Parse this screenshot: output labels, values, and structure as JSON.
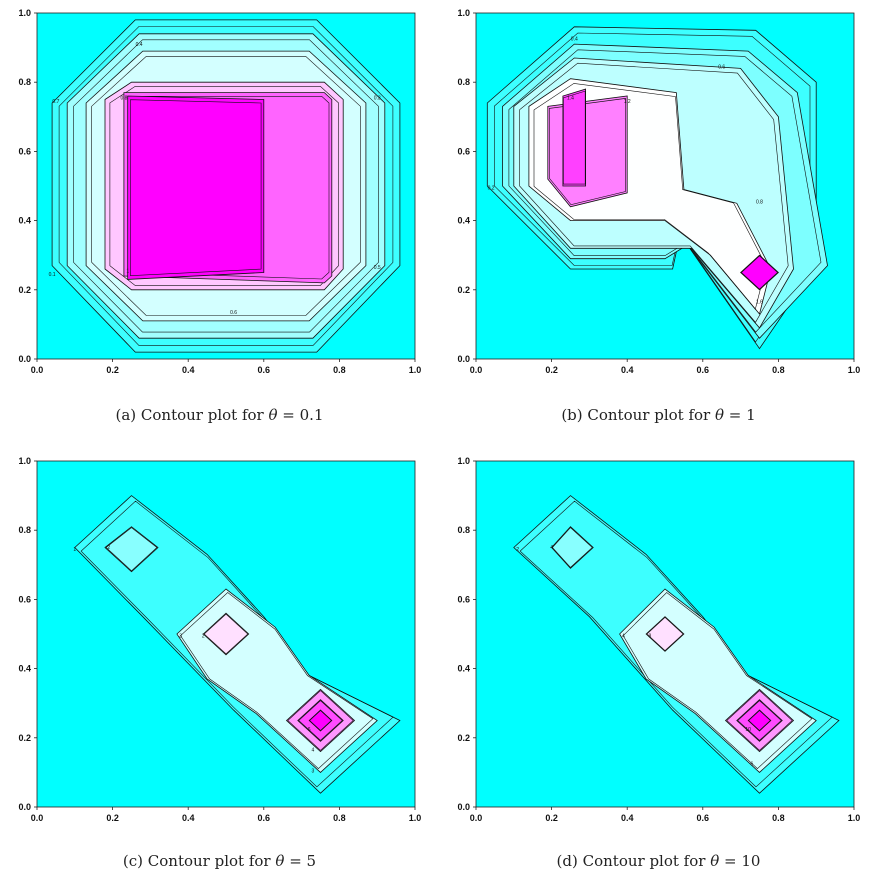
{
  "chart_data": [
    {
      "type": "contour",
      "panel": "a",
      "caption": "(a)  Contour plot for θ = 0.1",
      "caption_prefix": "(a)  Contour plot for ",
      "caption_symbol": "θ",
      "caption_value": "= 0.1",
      "xlim": [
        0,
        1
      ],
      "ylim": [
        0,
        1
      ],
      "x_ticks": [
        "0.0",
        "0.2",
        "0.4",
        "0.6",
        "0.8",
        "1.0"
      ],
      "y_ticks": [
        "0.0",
        "0.2",
        "0.4",
        "0.6",
        "0.8",
        "1.0"
      ],
      "background_color": "#00ffff",
      "peak_color": "#ff00ff",
      "contours": [
        {
          "level": 0.1,
          "label": "0.1",
          "outline": [
            [
              0.04,
              0.27
            ],
            [
              0.04,
              0.74
            ],
            [
              0.26,
              0.98
            ],
            [
              0.74,
              0.98
            ],
            [
              0.96,
              0.74
            ],
            [
              0.96,
              0.27
            ],
            [
              0.74,
              0.02
            ],
            [
              0.26,
              0.02
            ]
          ]
        },
        {
          "level": 0.3,
          "label": "0.3",
          "outline": [
            [
              0.08,
              0.27
            ],
            [
              0.08,
              0.74
            ],
            [
              0.27,
              0.94
            ],
            [
              0.73,
              0.94
            ],
            [
              0.92,
              0.74
            ],
            [
              0.92,
              0.27
            ],
            [
              0.73,
              0.06
            ],
            [
              0.27,
              0.06
            ]
          ]
        },
        {
          "level": 0.4,
          "label": "0.4",
          "outline": [
            [
              0.13,
              0.27
            ],
            [
              0.13,
              0.74
            ],
            [
              0.28,
              0.89
            ],
            [
              0.72,
              0.89
            ],
            [
              0.87,
              0.74
            ],
            [
              0.87,
              0.27
            ],
            [
              0.72,
              0.11
            ],
            [
              0.28,
              0.11
            ]
          ]
        },
        {
          "level": 0.6,
          "label": "0.6",
          "outline": [
            [
              0.18,
              0.26
            ],
            [
              0.18,
              0.75
            ],
            [
              0.25,
              0.8
            ],
            [
              0.76,
              0.8
            ],
            [
              0.81,
              0.75
            ],
            [
              0.81,
              0.26
            ],
            [
              0.76,
              0.2
            ],
            [
              0.25,
              0.2
            ]
          ]
        },
        {
          "level": 0.8,
          "label": "0.8",
          "outline": [
            [
              0.23,
              0.24
            ],
            [
              0.23,
              0.77
            ],
            [
              0.76,
              0.77
            ],
            [
              0.78,
              0.75
            ],
            [
              0.78,
              0.24
            ],
            [
              0.76,
              0.22
            ]
          ]
        },
        {
          "level": 1.0,
          "label": "1",
          "outline": [
            [
              0.24,
              0.23
            ],
            [
              0.24,
              0.76
            ],
            [
              0.6,
              0.75
            ],
            [
              0.6,
              0.25
            ]
          ]
        }
      ],
      "labels": [
        {
          "text": "0.4",
          "x": 0.27,
          "y": 0.905
        },
        {
          "text": "0.8",
          "x": 0.23,
          "y": 0.75
        },
        {
          "text": "0.7",
          "x": 0.05,
          "y": 0.74
        },
        {
          "text": "0.3",
          "x": 0.9,
          "y": 0.75
        },
        {
          "text": "0.5",
          "x": 0.9,
          "y": 0.26
        },
        {
          "text": "0.1",
          "x": 0.04,
          "y": 0.24
        },
        {
          "text": "0.6",
          "x": 0.52,
          "y": 0.13
        },
        {
          "text": "1",
          "x": 0.24,
          "y": 0.25
        }
      ]
    },
    {
      "type": "contour",
      "panel": "b",
      "caption": "(b)  Contour plot for θ = 1",
      "caption_prefix": "(b)  Contour plot for ",
      "caption_symbol": "θ",
      "caption_value": "= 1",
      "xlim": [
        0,
        1
      ],
      "ylim": [
        0,
        1
      ],
      "x_ticks": [
        "0.0",
        "0.2",
        "0.4",
        "0.6",
        "0.8",
        "1.0"
      ],
      "y_ticks": [
        "0.0",
        "0.2",
        "0.4",
        "0.6",
        "0.8",
        "1.0"
      ],
      "background_color": "#00ffff",
      "peak_color": "#ff00ff",
      "contours": [
        {
          "level": 0.2,
          "label": "0.2",
          "outline": [
            [
              0.03,
              0.5
            ],
            [
              0.03,
              0.74
            ],
            [
              0.26,
              0.96
            ],
            [
              0.74,
              0.95
            ],
            [
              0.9,
              0.8
            ],
            [
              0.9,
              0.27
            ],
            [
              0.75,
              0.03
            ],
            [
              0.54,
              0.36
            ],
            [
              0.52,
              0.26
            ],
            [
              0.25,
              0.26
            ]
          ]
        },
        {
          "level": 0.4,
          "label": "0.4",
          "outline": [
            [
              0.07,
              0.5
            ],
            [
              0.07,
              0.73
            ],
            [
              0.26,
              0.91
            ],
            [
              0.72,
              0.89
            ],
            [
              0.85,
              0.77
            ],
            [
              0.93,
              0.27
            ],
            [
              0.75,
              0.06
            ],
            [
              0.56,
              0.33
            ],
            [
              0.5,
              0.29
            ],
            [
              0.25,
              0.29
            ]
          ]
        },
        {
          "level": 0.6,
          "label": "0.6",
          "outline": [
            [
              0.1,
              0.5
            ],
            [
              0.1,
              0.73
            ],
            [
              0.26,
              0.87
            ],
            [
              0.7,
              0.84
            ],
            [
              0.8,
              0.7
            ],
            [
              0.84,
              0.26
            ],
            [
              0.75,
              0.09
            ],
            [
              0.57,
              0.32
            ],
            [
              0.5,
              0.32
            ],
            [
              0.25,
              0.32
            ]
          ]
        },
        {
          "level": 0.8,
          "label": "0.8",
          "outline": [
            [
              0.14,
              0.5
            ],
            [
              0.14,
              0.73
            ],
            [
              0.25,
              0.81
            ],
            [
              0.53,
              0.77
            ],
            [
              0.55,
              0.49
            ],
            [
              0.69,
              0.45
            ],
            [
              0.78,
              0.26
            ],
            [
              0.75,
              0.13
            ],
            [
              0.62,
              0.3
            ],
            [
              0.5,
              0.4
            ],
            [
              0.25,
              0.4
            ]
          ]
        },
        {
          "level": 1.2,
          "label": "1.2",
          "outline": [
            [
              0.19,
              0.52
            ],
            [
              0.19,
              0.73
            ],
            [
              0.4,
              0.76
            ],
            [
              0.4,
              0.48
            ],
            [
              0.25,
              0.44
            ]
          ]
        },
        {
          "level": 1.4,
          "label": "1.4",
          "outline": [
            [
              0.23,
              0.5
            ],
            [
              0.23,
              0.76
            ],
            [
              0.29,
              0.78
            ],
            [
              0.29,
              0.5
            ]
          ]
        },
        {
          "level": 1.6,
          "label": "1.6",
          "outline": [
            [
              0.7,
              0.25
            ],
            [
              0.75,
              0.3
            ],
            [
              0.8,
              0.25
            ],
            [
              0.75,
              0.2
            ]
          ]
        }
      ],
      "labels": [
        {
          "text": "0.4",
          "x": 0.26,
          "y": 0.92
        },
        {
          "text": "0.6",
          "x": 0.65,
          "y": 0.84
        },
        {
          "text": "1.4",
          "x": 0.25,
          "y": 0.75
        },
        {
          "text": "1.2",
          "x": 0.4,
          "y": 0.74
        },
        {
          "text": "0.2",
          "x": 0.04,
          "y": 0.49
        },
        {
          "text": "0.8",
          "x": 0.75,
          "y": 0.45
        },
        {
          "text": "1.6",
          "x": 0.75,
          "y": 0.16
        }
      ]
    },
    {
      "type": "contour",
      "panel": "c",
      "caption": "(c)  Contour plot for θ = 5",
      "caption_prefix": "(c)  Contour plot for ",
      "caption_symbol": "θ",
      "caption_value": "= 5",
      "xlim": [
        0,
        1
      ],
      "ylim": [
        0,
        1
      ],
      "x_ticks": [
        "0.0",
        "0.2",
        "0.4",
        "0.6",
        "0.8",
        "1.0"
      ],
      "y_ticks": [
        "0.0",
        "0.2",
        "0.4",
        "0.6",
        "0.8",
        "1.0"
      ],
      "background_color": "#00ffff",
      "peak_color": "#ff00ff",
      "contours": [
        {
          "level": 1,
          "label": "1",
          "outline": [
            [
              0.1,
              0.75
            ],
            [
              0.25,
              0.9
            ],
            [
              0.45,
              0.73
            ],
            [
              0.6,
              0.55
            ],
            [
              0.72,
              0.38
            ],
            [
              0.96,
              0.25
            ],
            [
              0.75,
              0.04
            ],
            [
              0.52,
              0.28
            ],
            [
              0.28,
              0.55
            ]
          ]
        },
        {
          "level": 2,
          "label": "2",
          "outline": [
            [
              0.18,
              0.75
            ],
            [
              0.25,
              0.81
            ],
            [
              0.32,
              0.75
            ],
            [
              0.25,
              0.68
            ]
          ]
        },
        {
          "level": 3,
          "label": "3",
          "outline": [
            [
              0.37,
              0.5
            ],
            [
              0.5,
              0.63
            ],
            [
              0.63,
              0.52
            ],
            [
              0.72,
              0.38
            ],
            [
              0.9,
              0.25
            ],
            [
              0.75,
              0.1
            ],
            [
              0.58,
              0.27
            ],
            [
              0.45,
              0.37
            ]
          ]
        },
        {
          "level": 4,
          "label": "4",
          "outline": [
            [
              0.44,
              0.5
            ],
            [
              0.5,
              0.56
            ],
            [
              0.56,
              0.5
            ],
            [
              0.5,
              0.44
            ]
          ]
        },
        {
          "level": 5,
          "label": "5",
          "outline": [
            [
              0.66,
              0.25
            ],
            [
              0.75,
              0.34
            ],
            [
              0.84,
              0.25
            ],
            [
              0.75,
              0.16
            ]
          ]
        },
        {
          "level": 6,
          "label": "6",
          "outline": [
            [
              0.69,
              0.25
            ],
            [
              0.75,
              0.31
            ],
            [
              0.81,
              0.25
            ],
            [
              0.75,
              0.19
            ]
          ]
        },
        {
          "level": 7,
          "label": "7",
          "outline": [
            [
              0.72,
              0.25
            ],
            [
              0.75,
              0.28
            ],
            [
              0.78,
              0.25
            ],
            [
              0.75,
              0.22
            ]
          ]
        }
      ],
      "labels": [
        {
          "text": "1",
          "x": 0.1,
          "y": 0.74
        },
        {
          "text": "2",
          "x": 0.19,
          "y": 0.745
        },
        {
          "text": "3",
          "x": 0.38,
          "y": 0.49
        },
        {
          "text": "2",
          "x": 0.44,
          "y": 0.49
        },
        {
          "text": "6",
          "x": 0.72,
          "y": 0.22
        },
        {
          "text": "4",
          "x": 0.73,
          "y": 0.16
        },
        {
          "text": "3",
          "x": 0.73,
          "y": 0.1
        }
      ]
    },
    {
      "type": "contour",
      "panel": "d",
      "caption": "(d)  Contour plot for θ = 10",
      "caption_prefix": "(d)  Contour plot for ",
      "caption_symbol": "θ",
      "caption_value": "= 10",
      "xlim": [
        0,
        1
      ],
      "ylim": [
        0,
        1
      ],
      "x_ticks": [
        "0.0",
        "0.2",
        "0.4",
        "0.6",
        "0.8",
        "1.0"
      ],
      "y_ticks": [
        "0.0",
        "0.2",
        "0.4",
        "0.6",
        "0.8",
        "1.0"
      ],
      "background_color": "#00ffff",
      "peak_color": "#ff00ff",
      "contours": [
        {
          "level": 2,
          "label": "2",
          "outline": [
            [
              0.1,
              0.75
            ],
            [
              0.25,
              0.9
            ],
            [
              0.45,
              0.73
            ],
            [
              0.6,
              0.55
            ],
            [
              0.72,
              0.38
            ],
            [
              0.96,
              0.25
            ],
            [
              0.75,
              0.04
            ],
            [
              0.52,
              0.28
            ],
            [
              0.3,
              0.55
            ]
          ]
        },
        {
          "level": 4,
          "label": "4",
          "outline": [
            [
              0.2,
              0.75
            ],
            [
              0.25,
              0.81
            ],
            [
              0.31,
              0.75
            ],
            [
              0.25,
              0.69
            ]
          ]
        },
        {
          "level": 6,
          "label": "6",
          "outline": [
            [
              0.38,
              0.5
            ],
            [
              0.5,
              0.63
            ],
            [
              0.63,
              0.52
            ],
            [
              0.72,
              0.38
            ],
            [
              0.9,
              0.25
            ],
            [
              0.75,
              0.1
            ],
            [
              0.58,
              0.27
            ],
            [
              0.45,
              0.37
            ]
          ]
        },
        {
          "level": 8,
          "label": "8",
          "outline": [
            [
              0.45,
              0.5
            ],
            [
              0.5,
              0.55
            ],
            [
              0.55,
              0.5
            ],
            [
              0.5,
              0.45
            ]
          ]
        },
        {
          "level": 10,
          "label": "10",
          "outline": [
            [
              0.66,
              0.25
            ],
            [
              0.75,
              0.34
            ],
            [
              0.84,
              0.25
            ],
            [
              0.75,
              0.16
            ]
          ]
        },
        {
          "level": 12,
          "label": "12",
          "outline": [
            [
              0.69,
              0.25
            ],
            [
              0.75,
              0.31
            ],
            [
              0.81,
              0.25
            ],
            [
              0.75,
              0.19
            ]
          ]
        },
        {
          "level": 14,
          "label": "14",
          "outline": [
            [
              0.72,
              0.25
            ],
            [
              0.75,
              0.28
            ],
            [
              0.78,
              0.25
            ],
            [
              0.75,
              0.22
            ]
          ]
        }
      ],
      "labels": [
        {
          "text": "2",
          "x": 0.11,
          "y": 0.74
        },
        {
          "text": "4",
          "x": 0.2,
          "y": 0.745
        },
        {
          "text": "4",
          "x": 0.39,
          "y": 0.49
        },
        {
          "text": "8",
          "x": 0.46,
          "y": 0.49
        },
        {
          "text": "10",
          "x": 0.72,
          "y": 0.22
        },
        {
          "text": "6",
          "x": 0.73,
          "y": 0.12
        }
      ]
    }
  ]
}
